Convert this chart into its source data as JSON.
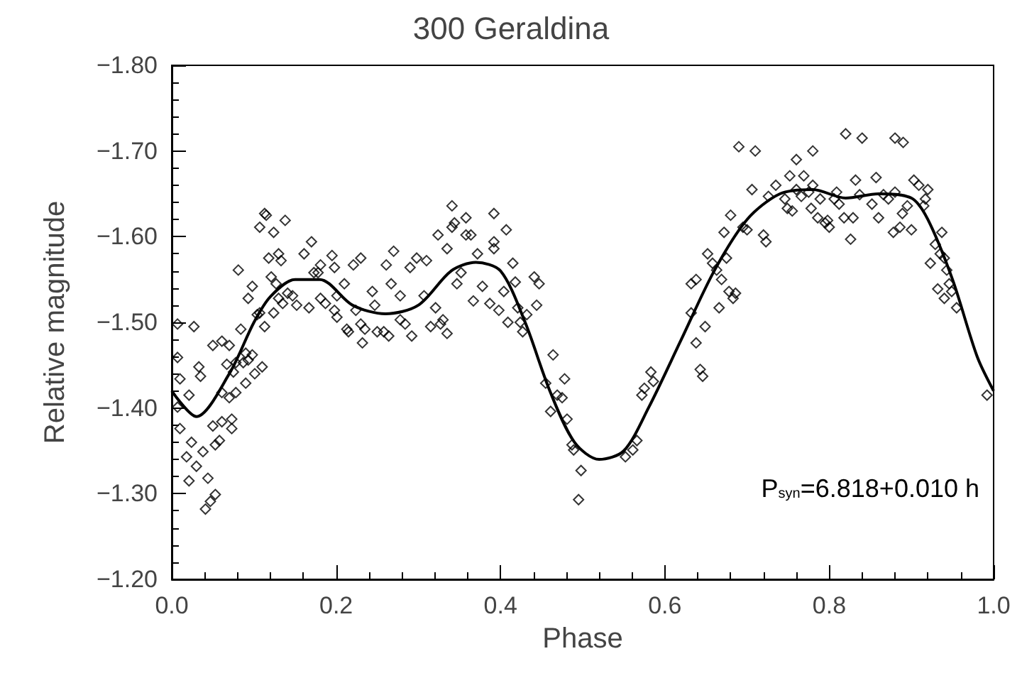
{
  "chart_data": {
    "type": "scatter",
    "title": "300 Geraldina",
    "xlabel": "Phase",
    "ylabel": "Relative magnitude",
    "annotations": [
      "P$_{syn}$=6.818+0.010 h"
    ],
    "xlim": [
      0,
      1
    ],
    "xticks": [
      {
        "value": 0,
        "label": "0.0"
      },
      0.2,
      0.4,
      0.6,
      0.8,
      {
        "value": 1,
        "label": "1.0"
      }
    ],
    "ylim": [
      -1.2,
      -1.8
    ],
    "yticks": [
      {
        "value": -1.2,
        "label": "−1.20"
      },
      {
        "value": -1.3,
        "label": "−1.30"
      },
      {
        "value": -1.4,
        "label": "−1.40"
      },
      {
        "value": -1.5,
        "label": "−1.50"
      },
      {
        "value": -1.6,
        "label": "−1.60"
      },
      {
        "value": -1.7,
        "label": "−1.70"
      },
      {
        "value": -1.8,
        "label": "−1.80"
      }
    ],
    "grid": false,
    "marker": "diamond",
    "series": [
      {
        "color": "#000000",
        "x": [
          0.007,
          0.027,
          0.007,
          0.01,
          0.021,
          0.007,
          0.01,
          0.024,
          0.018,
          0.021,
          0.03,
          0.041,
          0.047,
          0.053,
          0.044,
          0.038,
          0.053,
          0.058,
          0.05,
          0.061,
          0.073,
          0.073,
          0.033,
          0.035,
          0.05,
          0.061,
          0.07,
          0.061,
          0.07,
          0.078,
          0.067,
          0.075,
          0.078,
          0.087,
          0.081,
          0.084,
          0.09,
          0.093,
          0.098,
          0.09,
          0.101,
          0.11,
          0.093,
          0.098,
          0.104,
          0.107,
          0.113,
          0.107,
          0.113,
          0.115,
          0.124,
          0.138,
          0.118,
          0.13,
          0.133,
          0.121,
          0.127,
          0.13,
          0.135,
          0.124,
          0.141,
          0.147,
          0.152,
          0.161,
          0.17,
          0.173,
          0.178,
          0.181,
          0.167,
          0.181,
          0.187,
          0.195,
          0.198,
          0.201,
          0.198,
          0.201,
          0.21,
          0.213,
          0.215,
          0.221,
          0.23,
          0.224,
          0.23,
          0.232,
          0.235,
          0.244,
          0.247,
          0.25,
          0.258,
          0.264,
          0.261,
          0.27,
          0.267,
          0.278,
          0.278,
          0.284,
          0.29,
          0.292,
          0.298,
          0.307,
          0.31,
          0.315,
          0.321,
          0.327,
          0.33,
          0.324,
          0.335,
          0.335,
          0.341,
          0.344,
          0.341,
          0.347,
          0.352,
          0.358,
          0.358,
          0.364,
          0.367,
          0.372,
          0.378,
          0.387,
          0.392,
          0.392,
          0.392,
          0.398,
          0.407,
          0.409,
          0.404,
          0.415,
          0.418,
          0.421,
          0.424,
          0.427,
          0.432,
          0.441,
          0.447,
          0.444,
          0.464,
          0.455,
          0.469,
          0.478,
          0.461,
          0.475,
          0.481,
          0.487,
          0.489,
          0.498,
          0.495,
          0.552,
          0.561,
          0.566,
          0.572,
          0.575,
          0.583,
          0.586,
          0.632,
          0.638,
          0.632,
          0.638,
          0.643,
          0.646,
          0.649,
          0.652,
          0.658,
          0.663,
          0.669,
          0.675,
          0.666,
          0.678,
          0.686,
          0.683,
          0.672,
          0.68,
          0.695,
          0.7,
          0.706,
          0.72,
          0.723,
          0.726,
          0.735,
          0.746,
          0.749,
          0.755,
          0.752,
          0.76,
          0.769,
          0.766,
          0.775,
          0.778,
          0.78,
          0.786,
          0.789,
          0.795,
          0.798,
          0.8,
          0.806,
          0.809,
          0.812,
          0.818,
          0.826,
          0.829,
          0.832,
          0.837,
          0.852,
          0.857,
          0.86,
          0.866,
          0.872,
          0.878,
          0.88,
          0.886,
          0.889,
          0.895,
          0.9,
          0.903,
          0.909,
          0.915,
          0.917,
          0.92,
          0.923,
          0.929,
          0.935,
          0.937,
          0.94,
          0.943,
          0.932,
          0.94,
          0.946,
          0.949,
          0.955,
          0.992,
          0.82,
          0.84,
          0.88,
          0.89,
          0.69,
          0.71,
          0.78,
          0.76
        ],
        "values": [
          -1.498,
          -1.495,
          -1.459,
          -1.434,
          -1.415,
          -1.401,
          -1.376,
          -1.36,
          -1.343,
          -1.315,
          -1.332,
          -1.282,
          -1.291,
          -1.299,
          -1.318,
          -1.349,
          -1.357,
          -1.362,
          -1.379,
          -1.384,
          -1.376,
          -1.387,
          -1.448,
          -1.437,
          -1.473,
          -1.478,
          -1.473,
          -1.418,
          -1.412,
          -1.418,
          -1.451,
          -1.442,
          -1.453,
          -1.453,
          -1.561,
          -1.492,
          -1.464,
          -1.456,
          -1.462,
          -1.429,
          -1.44,
          -1.448,
          -1.528,
          -1.542,
          -1.509,
          -1.511,
          -1.495,
          -1.611,
          -1.627,
          -1.625,
          -1.605,
          -1.619,
          -1.575,
          -1.58,
          -1.572,
          -1.553,
          -1.545,
          -1.528,
          -1.522,
          -1.511,
          -1.534,
          -1.531,
          -1.52,
          -1.58,
          -1.594,
          -1.558,
          -1.558,
          -1.567,
          -1.517,
          -1.528,
          -1.522,
          -1.578,
          -1.564,
          -1.531,
          -1.514,
          -1.506,
          -1.545,
          -1.492,
          -1.489,
          -1.567,
          -1.575,
          -1.514,
          -1.498,
          -1.476,
          -1.492,
          -1.536,
          -1.52,
          -1.489,
          -1.489,
          -1.484,
          -1.567,
          -1.583,
          -1.545,
          -1.531,
          -1.503,
          -1.498,
          -1.564,
          -1.484,
          -1.575,
          -1.531,
          -1.572,
          -1.495,
          -1.517,
          -1.498,
          -1.503,
          -1.602,
          -1.487,
          -1.586,
          -1.611,
          -1.616,
          -1.636,
          -1.545,
          -1.558,
          -1.622,
          -1.602,
          -1.602,
          -1.525,
          -1.58,
          -1.542,
          -1.522,
          -1.627,
          -1.594,
          -1.586,
          -1.514,
          -1.608,
          -1.5,
          -1.536,
          -1.569,
          -1.547,
          -1.517,
          -1.5,
          -1.489,
          -1.509,
          -1.553,
          -1.545,
          -1.52,
          -1.462,
          -1.429,
          -1.415,
          -1.434,
          -1.396,
          -1.412,
          -1.387,
          -1.357,
          -1.351,
          -1.327,
          -1.293,
          -1.343,
          -1.351,
          -1.362,
          -1.415,
          -1.423,
          -1.442,
          -1.431,
          -1.545,
          -1.55,
          -1.511,
          -1.476,
          -1.445,
          -1.437,
          -1.495,
          -1.58,
          -1.569,
          -1.561,
          -1.55,
          -1.575,
          -1.517,
          -1.536,
          -1.534,
          -1.528,
          -1.605,
          -1.625,
          -1.611,
          -1.608,
          -1.655,
          -1.602,
          -1.594,
          -1.647,
          -1.66,
          -1.644,
          -1.633,
          -1.63,
          -1.671,
          -1.655,
          -1.671,
          -1.647,
          -1.652,
          -1.633,
          -1.66,
          -1.622,
          -1.644,
          -1.616,
          -1.619,
          -1.611,
          -1.644,
          -1.652,
          -1.638,
          -1.622,
          -1.597,
          -1.622,
          -1.666,
          -1.649,
          -1.638,
          -1.669,
          -1.622,
          -1.649,
          -1.644,
          -1.605,
          -1.652,
          -1.611,
          -1.627,
          -1.636,
          -1.608,
          -1.666,
          -1.66,
          -1.636,
          -1.644,
          -1.655,
          -1.569,
          -1.591,
          -1.58,
          -1.605,
          -1.575,
          -1.561,
          -1.539,
          -1.528,
          -1.545,
          -1.536,
          -1.517,
          -1.415,
          -1.72,
          -1.715,
          -1.715,
          -1.71,
          -1.705,
          -1.7,
          -1.7,
          -1.69
        ]
      },
      {
        "type": "line",
        "color": "#000000",
        "marker": "none",
        "line_style": "solid",
        "x": [
          0,
          0.03,
          0.07,
          0.1,
          0.12,
          0.15,
          0.18,
          0.22,
          0.26,
          0.3,
          0.34,
          0.37,
          0.4,
          0.43,
          0.46,
          0.49,
          0.52,
          0.55,
          0.58,
          0.62,
          0.66,
          0.7,
          0.74,
          0.78,
          0.82,
          0.86,
          0.9,
          0.92,
          0.95,
          0.98,
          1
        ],
        "values": [
          -1.42,
          -1.39,
          -1.44,
          -1.5,
          -1.53,
          -1.55,
          -1.55,
          -1.52,
          -1.51,
          -1.52,
          -1.56,
          -1.57,
          -1.56,
          -1.5,
          -1.42,
          -1.36,
          -1.34,
          -1.35,
          -1.4,
          -1.48,
          -1.56,
          -1.62,
          -1.65,
          -1.655,
          -1.645,
          -1.65,
          -1.645,
          -1.62,
          -1.55,
          -1.46,
          -1.42
        ]
      }
    ]
  }
}
